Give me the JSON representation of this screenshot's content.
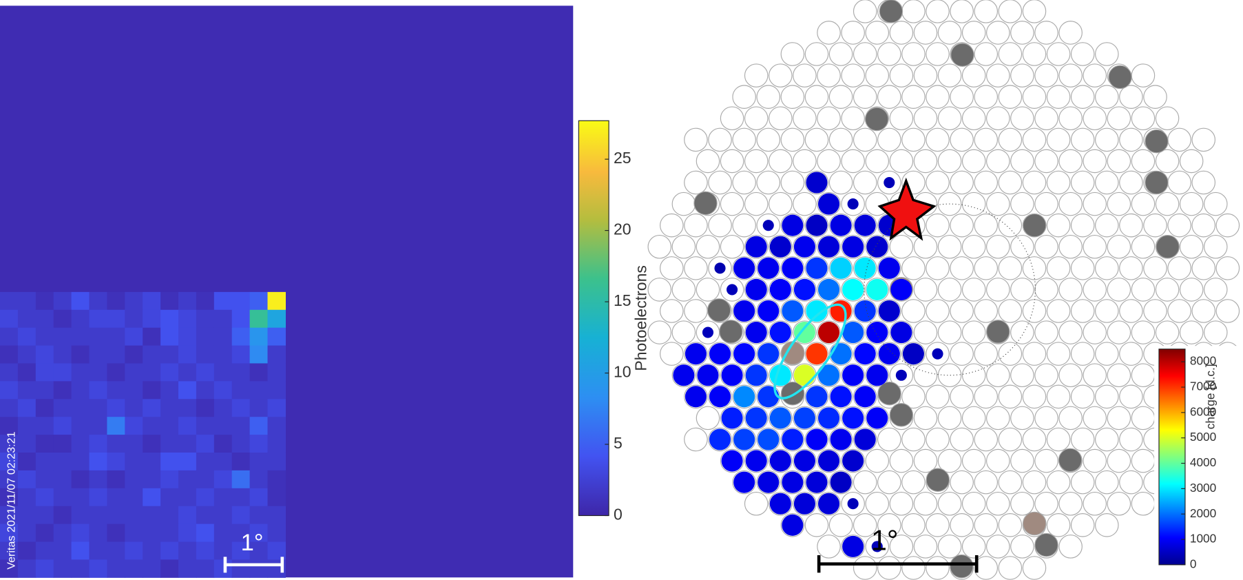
{
  "left_panel": {
    "timestamp": "Veritas 2021/11/07 02:23:21",
    "scale_label": "1°",
    "colorbar": {
      "label": "Photoelectrons",
      "colormap": "parula",
      "lim": [
        0,
        27.7
      ],
      "ticks": [
        0,
        5,
        10,
        15,
        20,
        25
      ]
    },
    "values": [
      [
        2,
        2,
        1,
        2,
        4,
        2,
        1,
        2,
        3,
        1,
        2,
        1,
        4,
        4,
        5,
        27
      ],
      [
        3,
        2,
        2,
        1,
        2,
        3,
        3,
        2,
        3,
        4,
        3,
        2,
        2,
        4,
        16,
        11
      ],
      [
        2,
        3,
        2,
        2,
        2,
        2,
        2,
        3,
        1,
        4,
        3,
        2,
        2,
        5,
        9,
        5
      ],
      [
        1,
        2,
        3,
        2,
        1,
        2,
        2,
        1,
        2,
        2,
        3,
        2,
        2,
        3,
        8,
        2
      ],
      [
        2,
        1,
        3,
        3,
        2,
        2,
        1,
        2,
        2,
        3,
        2,
        3,
        2,
        2,
        1,
        2
      ],
      [
        3,
        2,
        2,
        1,
        2,
        3,
        2,
        2,
        1,
        2,
        4,
        2,
        3,
        2,
        2,
        2
      ],
      [
        2,
        3,
        1,
        2,
        2,
        2,
        3,
        2,
        3,
        2,
        2,
        1,
        2,
        3,
        2,
        3
      ],
      [
        1,
        2,
        2,
        3,
        2,
        2,
        7,
        3,
        2,
        2,
        3,
        2,
        2,
        2,
        5,
        2
      ],
      [
        2,
        2,
        1,
        1,
        2,
        3,
        2,
        2,
        1,
        2,
        2,
        3,
        1,
        2,
        3,
        2
      ],
      [
        3,
        1,
        2,
        2,
        2,
        4,
        3,
        2,
        2,
        4,
        4,
        2,
        2,
        1,
        2,
        2
      ],
      [
        2,
        3,
        2,
        2,
        1,
        2,
        1,
        2,
        2,
        3,
        2,
        2,
        3,
        6,
        2,
        1
      ],
      [
        1,
        2,
        3,
        2,
        2,
        3,
        2,
        2,
        4,
        2,
        2,
        3,
        2,
        2,
        3,
        1
      ],
      [
        2,
        2,
        2,
        1,
        2,
        2,
        2,
        2,
        2,
        2,
        3,
        2,
        2,
        3,
        2,
        2
      ],
      [
        3,
        2,
        1,
        2,
        3,
        2,
        1,
        2,
        2,
        2,
        3,
        4,
        2,
        2,
        3,
        2
      ],
      [
        2,
        1,
        2,
        2,
        4,
        2,
        2,
        3,
        2,
        3,
        2,
        3,
        2,
        3,
        2,
        3
      ],
      [
        1,
        2,
        3,
        2,
        2,
        3,
        2,
        2,
        2,
        1,
        2,
        2,
        3,
        2,
        2,
        2
      ]
    ]
  },
  "right_panel": {
    "scale_label": "1°",
    "colorbar": {
      "label": "charge [d.c.]",
      "colormap": "jet",
      "lim": [
        0,
        8500
      ],
      "ticks": [
        0,
        1000,
        2000,
        3000,
        4000,
        5000,
        6000,
        7000,
        8000
      ]
    },
    "charge_rows": [
      [],
      [],
      [],
      [],
      [],
      [],
      [],
      [],
      [
        null,
        null,
        null,
        null,
        null,
        600,
        null,
        null,
        400
      ],
      [
        null,
        null,
        null,
        null,
        null,
        null,
        700,
        400
      ],
      [
        null,
        null,
        null,
        null,
        400,
        800,
        500,
        800,
        700,
        600
      ],
      [
        null,
        null,
        null,
        null,
        800,
        600,
        900,
        700,
        800,
        600
      ],
      [
        null,
        null,
        300,
        900,
        900,
        1000,
        1500,
        2800,
        3000,
        900
      ],
      [
        null,
        null,
        null,
        400,
        900,
        1000,
        1200,
        2000,
        3200,
        3300,
        1000
      ],
      [
        null,
        null,
        null,
        900,
        1000,
        1800,
        3000,
        7200,
        1500,
        600
      ],
      [
        null,
        null,
        400,
        null,
        900,
        1200,
        4000,
        8000,
        1800,
        1000,
        800
      ],
      [
        null,
        900,
        1000,
        1100,
        1500,
        null,
        7000,
        2000,
        1100,
        900,
        500,
        400
      ],
      [
        900,
        900,
        1000,
        1500,
        3000,
        5000,
        2000,
        1000,
        900,
        400
      ],
      [
        900,
        1000,
        2200,
        1500,
        null,
        1500,
        1200,
        1000
      ],
      [
        null,
        1300,
        1500,
        1800,
        1600,
        1400,
        1200,
        1000
      ],
      [
        null,
        1400,
        1600,
        1700,
        1300,
        1000,
        900,
        700
      ],
      [
        1000,
        900,
        800,
        800,
        700,
        600
      ],
      [
        900,
        800,
        800,
        700,
        500
      ],
      [
        null,
        800,
        700,
        700,
        400
      ],
      [
        800
      ],
      [
        null,
        800,
        400
      ],
      []
    ]
  }
}
